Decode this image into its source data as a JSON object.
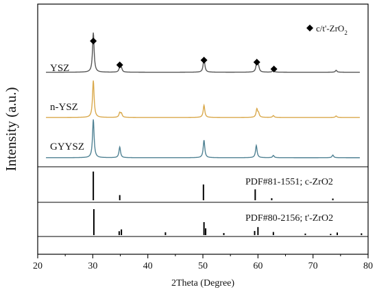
{
  "chart_data": {
    "type": "line",
    "xlabel": "2Theta (Degree)",
    "ylabel": "Intensity (a.u.)",
    "xlim": [
      20,
      80
    ],
    "x_ticks": [
      20,
      30,
      40,
      50,
      60,
      70,
      80
    ],
    "legend": {
      "marker": "◆",
      "text": "c/t'-ZrO",
      "subscript": "2",
      "placement": "top-right"
    },
    "marker_positions": [
      30.1,
      34.9,
      50.2,
      59.8,
      62.9
    ],
    "series": [
      {
        "name": "YSZ",
        "color": "#555555",
        "baseline_intensity": 0.04,
        "peaks": [
          [
            30.1,
            1.0
          ],
          [
            34.9,
            0.12
          ],
          [
            35.2,
            0.1
          ],
          [
            50.2,
            0.36
          ],
          [
            59.8,
            0.28
          ],
          [
            60.1,
            0.12
          ],
          [
            62.8,
            0.06
          ],
          [
            74.2,
            0.05
          ]
        ]
      },
      {
        "name": "n-YSZ",
        "color": "#D9A84A",
        "baseline_intensity": 0.04,
        "peaks": [
          [
            30.1,
            1.0
          ],
          [
            34.9,
            0.12
          ],
          [
            35.2,
            0.1
          ],
          [
            50.2,
            0.33
          ],
          [
            59.8,
            0.22
          ],
          [
            60.1,
            0.1
          ],
          [
            62.8,
            0.05
          ],
          [
            74.2,
            0.04
          ]
        ]
      },
      {
        "name": "GYYSZ",
        "color": "#4F8193",
        "baseline_intensity": 0.04,
        "peaks": [
          [
            30.1,
            1.0
          ],
          [
            34.9,
            0.28
          ],
          [
            50.2,
            0.46
          ],
          [
            59.7,
            0.32
          ],
          [
            62.8,
            0.06
          ],
          [
            73.6,
            0.07
          ]
        ]
      }
    ],
    "references": [
      {
        "label": "PDF#81-1551; c-ZrO2",
        "lines": [
          [
            30.1,
            1.0
          ],
          [
            34.9,
            0.18
          ],
          [
            50.1,
            0.55
          ],
          [
            59.5,
            0.38
          ],
          [
            62.5,
            0.07
          ],
          [
            73.6,
            0.06
          ]
        ]
      },
      {
        "label": "PDF#80-2156; t'-ZrO2",
        "lines": [
          [
            30.2,
            1.0
          ],
          [
            34.8,
            0.15
          ],
          [
            35.2,
            0.22
          ],
          [
            43.2,
            0.11
          ],
          [
            50.2,
            0.5
          ],
          [
            50.5,
            0.26
          ],
          [
            53.8,
            0.08
          ],
          [
            59.4,
            0.16
          ],
          [
            60.0,
            0.31
          ],
          [
            62.8,
            0.12
          ],
          [
            68.6,
            0.06
          ],
          [
            73.2,
            0.05
          ],
          [
            74.4,
            0.1
          ],
          [
            78.8,
            0.07
          ]
        ]
      }
    ]
  }
}
